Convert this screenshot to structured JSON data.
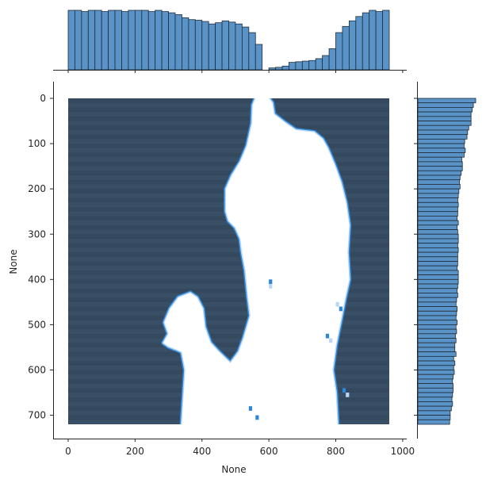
{
  "chart_data": {
    "type": "heatmap",
    "subtype": "joint-plot with marginal histograms",
    "xlabel": "None",
    "ylabel": "None",
    "x_ticks": [
      "0",
      "200",
      "400",
      "600",
      "800",
      "1000"
    ],
    "y_ticks": [
      "0",
      "100",
      "200",
      "300",
      "400",
      "500",
      "600",
      "700"
    ],
    "xlim": [
      -40,
      1000
    ],
    "ylim": [
      755,
      -20
    ],
    "image_extent": {
      "x": [
        0,
        960
      ],
      "y": [
        0,
        720
      ]
    },
    "color_dark": "#34495e",
    "color_mid": "#2f86d6",
    "color_light": "#b9d7f4",
    "hist_fill": "#5a93c7",
    "hist_stroke": "#1f2d3a",
    "silhouette_white_region": [
      [
        560,
        0
      ],
      [
        600,
        0
      ],
      [
        610,
        10
      ],
      [
        615,
        35
      ],
      [
        650,
        55
      ],
      [
        680,
        70
      ],
      [
        735,
        75
      ],
      [
        760,
        90
      ],
      [
        775,
        110
      ],
      [
        795,
        145
      ],
      [
        815,
        185
      ],
      [
        830,
        230
      ],
      [
        840,
        280
      ],
      [
        835,
        340
      ],
      [
        840,
        400
      ],
      [
        828,
        440
      ],
      [
        815,
        490
      ],
      [
        800,
        545
      ],
      [
        790,
        600
      ],
      [
        800,
        650
      ],
      [
        805,
        720
      ],
      [
        340,
        720
      ],
      [
        350,
        600
      ],
      [
        340,
        560
      ],
      [
        325,
        555
      ],
      [
        300,
        548
      ],
      [
        285,
        540
      ],
      [
        300,
        520
      ],
      [
        288,
        495
      ],
      [
        305,
        465
      ],
      [
        330,
        440
      ],
      [
        365,
        430
      ],
      [
        385,
        440
      ],
      [
        402,
        465
      ],
      [
        408,
        505
      ],
      [
        425,
        540
      ],
      [
        450,
        560
      ],
      [
        485,
        585
      ],
      [
        510,
        560
      ],
      [
        525,
        530
      ],
      [
        545,
        480
      ],
      [
        538,
        440
      ],
      [
        530,
        380
      ],
      [
        520,
        340
      ],
      [
        515,
        310
      ],
      [
        500,
        285
      ],
      [
        480,
        270
      ],
      [
        472,
        250
      ],
      [
        472,
        200
      ],
      [
        490,
        170
      ],
      [
        515,
        140
      ],
      [
        535,
        105
      ],
      [
        550,
        55
      ],
      [
        552,
        15
      ]
    ],
    "x_marginal_counts": [
      [
        0,
        960
      ],
      [
        20,
        960
      ],
      [
        40,
        940
      ],
      [
        60,
        960
      ],
      [
        80,
        960
      ],
      [
        100,
        940
      ],
      [
        120,
        960
      ],
      [
        140,
        960
      ],
      [
        160,
        940
      ],
      [
        180,
        960
      ],
      [
        200,
        960
      ],
      [
        220,
        960
      ],
      [
        240,
        940
      ],
      [
        260,
        960
      ],
      [
        280,
        940
      ],
      [
        300,
        920
      ],
      [
        320,
        890
      ],
      [
        340,
        840
      ],
      [
        360,
        810
      ],
      [
        380,
        800
      ],
      [
        400,
        780
      ],
      [
        420,
        740
      ],
      [
        440,
        760
      ],
      [
        460,
        790
      ],
      [
        480,
        770
      ],
      [
        500,
        740
      ],
      [
        520,
        690
      ],
      [
        540,
        600
      ],
      [
        560,
        410
      ],
      [
        580,
        0
      ],
      [
        600,
        30
      ],
      [
        620,
        40
      ],
      [
        640,
        60
      ],
      [
        660,
        120
      ],
      [
        680,
        130
      ],
      [
        700,
        140
      ],
      [
        720,
        150
      ],
      [
        740,
        180
      ],
      [
        760,
        230
      ],
      [
        780,
        340
      ],
      [
        800,
        600
      ],
      [
        820,
        700
      ],
      [
        840,
        790
      ],
      [
        860,
        860
      ],
      [
        880,
        920
      ],
      [
        900,
        960
      ],
      [
        920,
        940
      ],
      [
        940,
        960
      ]
    ],
    "y_marginal_counts": [
      [
        0,
        1000
      ],
      [
        10,
        960
      ],
      [
        20,
        940
      ],
      [
        30,
        920
      ],
      [
        40,
        920
      ],
      [
        50,
        920
      ],
      [
        60,
        880
      ],
      [
        70,
        860
      ],
      [
        80,
        850
      ],
      [
        90,
        810
      ],
      [
        100,
        800
      ],
      [
        110,
        820
      ],
      [
        120,
        800
      ],
      [
        130,
        760
      ],
      [
        140,
        770
      ],
      [
        150,
        770
      ],
      [
        160,
        750
      ],
      [
        170,
        730
      ],
      [
        180,
        720
      ],
      [
        190,
        730
      ],
      [
        200,
        710
      ],
      [
        210,
        700
      ],
      [
        220,
        690
      ],
      [
        230,
        700
      ],
      [
        240,
        690
      ],
      [
        250,
        690
      ],
      [
        260,
        680
      ],
      [
        270,
        700
      ],
      [
        280,
        680
      ],
      [
        290,
        690
      ],
      [
        300,
        700
      ],
      [
        310,
        700
      ],
      [
        320,
        690
      ],
      [
        330,
        700
      ],
      [
        340,
        690
      ],
      [
        350,
        690
      ],
      [
        360,
        690
      ],
      [
        370,
        680
      ],
      [
        380,
        700
      ],
      [
        390,
        700
      ],
      [
        400,
        700
      ],
      [
        410,
        690
      ],
      [
        420,
        680
      ],
      [
        430,
        690
      ],
      [
        440,
        670
      ],
      [
        450,
        660
      ],
      [
        460,
        680
      ],
      [
        470,
        670
      ],
      [
        480,
        660
      ],
      [
        490,
        680
      ],
      [
        500,
        660
      ],
      [
        510,
        670
      ],
      [
        520,
        650
      ],
      [
        530,
        660
      ],
      [
        540,
        640
      ],
      [
        550,
        640
      ],
      [
        560,
        660
      ],
      [
        570,
        620
      ],
      [
        580,
        640
      ],
      [
        590,
        620
      ],
      [
        600,
        630
      ],
      [
        610,
        610
      ],
      [
        620,
        600
      ],
      [
        630,
        610
      ],
      [
        640,
        610
      ],
      [
        650,
        600
      ],
      [
        660,
        590
      ],
      [
        670,
        600
      ],
      [
        680,
        580
      ],
      [
        690,
        560
      ],
      [
        700,
        560
      ],
      [
        710,
        550
      ]
    ]
  }
}
